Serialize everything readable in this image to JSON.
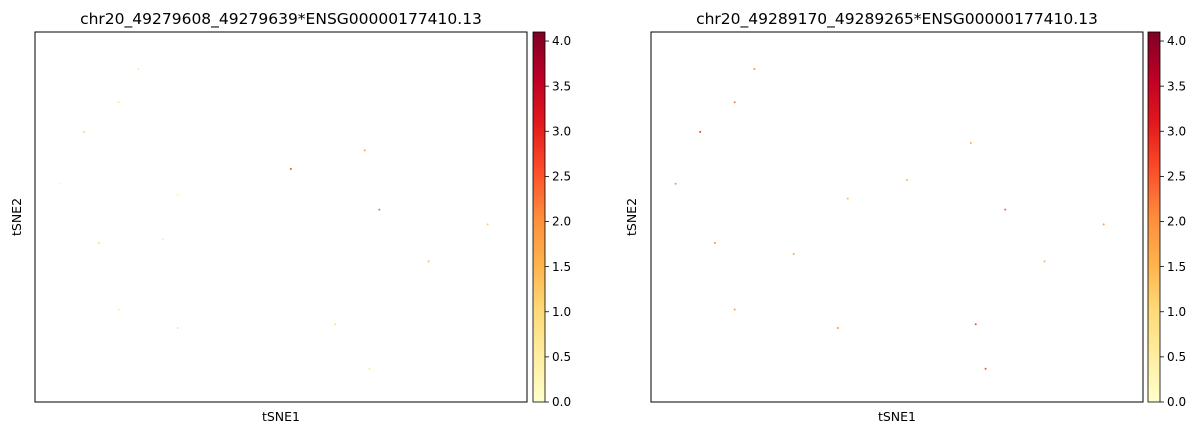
{
  "colorbar": {
    "colormap": "YlOrRd",
    "stops": [
      "#ffffcc",
      "#ffeda0",
      "#fed976",
      "#feb24c",
      "#fd8d3c",
      "#fc4e2a",
      "#e31a1c",
      "#bd0026",
      "#800026"
    ],
    "range": [
      0.0,
      4.1
    ],
    "ticks": [
      0.0,
      0.5,
      1.0,
      1.5,
      2.0,
      2.5,
      3.0,
      3.5,
      4.0
    ],
    "tick_labels": [
      "0.0",
      "0.5",
      "1.0",
      "1.5",
      "2.0",
      "2.5",
      "3.0",
      "3.5",
      "4.0"
    ]
  },
  "chart_data": [
    {
      "type": "scatter",
      "title": "chr20_49279608_49279639*ENSG00000177410.13",
      "xlabel": "tSNE1",
      "ylabel": "tSNE2",
      "color_range": [
        0.0,
        4.1
      ],
      "grid": false,
      "legend": "colorbar-right",
      "series": [
        {
          "points": [
            {
              "x": 0.05,
              "y": 0.59,
              "v": 0.3
            },
            {
              "x": 0.1,
              "y": 0.73,
              "v": 1.0
            },
            {
              "x": 0.13,
              "y": 0.43,
              "v": 0.9
            },
            {
              "x": 0.17,
              "y": 0.81,
              "v": 0.7
            },
            {
              "x": 0.21,
              "y": 0.9,
              "v": 0.6
            },
            {
              "x": 0.29,
              "y": 0.56,
              "v": 0.4
            },
            {
              "x": 0.26,
              "y": 0.44,
              "v": 0.5
            },
            {
              "x": 0.29,
              "y": 0.2,
              "v": 0.8
            },
            {
              "x": 0.17,
              "y": 0.25,
              "v": 0.6
            },
            {
              "x": 0.52,
              "y": 0.63,
              "v": 2.6
            },
            {
              "x": 0.7,
              "y": 0.52,
              "v": 2.3
            },
            {
              "x": 0.67,
              "y": 0.68,
              "v": 1.7
            },
            {
              "x": 0.8,
              "y": 0.38,
              "v": 1.4
            },
            {
              "x": 0.61,
              "y": 0.21,
              "v": 0.9
            },
            {
              "x": 0.68,
              "y": 0.09,
              "v": 0.7
            },
            {
              "x": 0.92,
              "y": 0.48,
              "v": 1.2
            }
          ]
        }
      ]
    },
    {
      "type": "scatter",
      "title": "chr20_49289170_49289265*ENSG00000177410.13",
      "xlabel": "tSNE1",
      "ylabel": "tSNE2",
      "color_range": [
        0.0,
        4.1
      ],
      "grid": false,
      "legend": "colorbar-right",
      "series": [
        {
          "points": [
            {
              "x": 0.05,
              "y": 0.59,
              "v": 2.0
            },
            {
              "x": 0.1,
              "y": 0.73,
              "v": 2.8
            },
            {
              "x": 0.13,
              "y": 0.43,
              "v": 2.0
            },
            {
              "x": 0.17,
              "y": 0.81,
              "v": 2.2
            },
            {
              "x": 0.21,
              "y": 0.9,
              "v": 2.0
            },
            {
              "x": 0.4,
              "y": 0.55,
              "v": 1.4
            },
            {
              "x": 0.29,
              "y": 0.4,
              "v": 1.7
            },
            {
              "x": 0.38,
              "y": 0.2,
              "v": 2.0
            },
            {
              "x": 0.17,
              "y": 0.25,
              "v": 1.8
            },
            {
              "x": 0.52,
              "y": 0.6,
              "v": 1.5
            },
            {
              "x": 0.72,
              "y": 0.52,
              "v": 2.4
            },
            {
              "x": 0.65,
              "y": 0.7,
              "v": 1.6
            },
            {
              "x": 0.8,
              "y": 0.38,
              "v": 1.5
            },
            {
              "x": 0.66,
              "y": 0.21,
              "v": 2.6
            },
            {
              "x": 0.68,
              "y": 0.09,
              "v": 2.6
            },
            {
              "x": 0.92,
              "y": 0.48,
              "v": 1.8
            }
          ]
        }
      ]
    }
  ]
}
